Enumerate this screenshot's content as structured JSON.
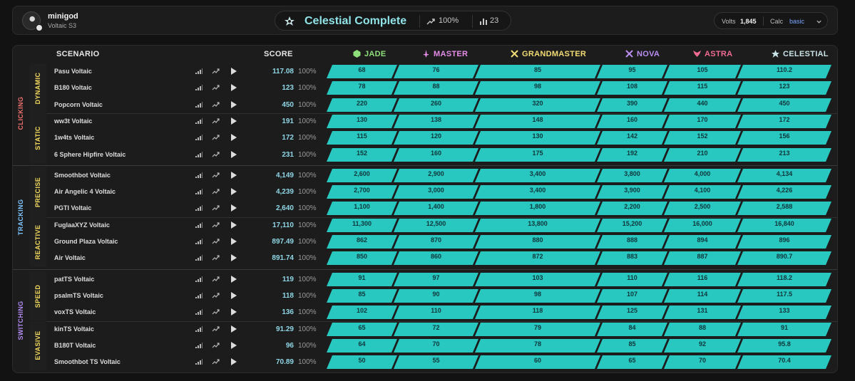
{
  "profile": {
    "name": "minigod",
    "subtitle": "Voltaic S3"
  },
  "summary": {
    "rank": "Celestial Complete",
    "percent": "100%",
    "count": "23"
  },
  "settings": {
    "volts_label": "Volts",
    "volts_value": "1,845",
    "calc_label": "Calc",
    "calc_value": "basic"
  },
  "columns": {
    "scenario": "SCENARIO",
    "score": "SCORE",
    "ranks": [
      {
        "label": "JADE",
        "color": "#8ee07a",
        "icon": "jade-gem-icon"
      },
      {
        "label": "MASTER",
        "color": "#e58ce8",
        "icon": "master-sword-icon"
      },
      {
        "label": "GRANDMASTER",
        "color": "#f3dc74",
        "icon": "grandmaster-crossed-swords-icon"
      },
      {
        "label": "NOVA",
        "color": "#b98df2",
        "icon": "nova-crossed-swords-icon"
      },
      {
        "label": "ASTRA",
        "color": "#f06b91",
        "icon": "astra-wings-icon"
      },
      {
        "label": "CELESTIAL",
        "color": "#c9e3e6",
        "icon": "celestial-emblem-icon"
      }
    ]
  },
  "colors": {
    "bar_fill": "#28c7c0",
    "clicking": "#ef6f6f",
    "tracking": "#7ec4ff",
    "switching": "#b18af0",
    "subcategory": "#f5dc5e"
  },
  "categories": [
    {
      "name": "CLICKING",
      "groups": [
        {
          "name": "DYNAMIC",
          "rows": [
            {
              "scenario": "Pasu Voltaic",
              "score": "117.08",
              "percent": "100%",
              "thresholds": [
                "68",
                "76",
                "85",
                "95",
                "105",
                "110.2"
              ]
            },
            {
              "scenario": "B180 Voltaic",
              "score": "123",
              "percent": "100%",
              "thresholds": [
                "78",
                "88",
                "98",
                "108",
                "115",
                "123"
              ]
            },
            {
              "scenario": "Popcorn Voltaic",
              "score": "450",
              "percent": "100%",
              "thresholds": [
                "220",
                "260",
                "320",
                "390",
                "440",
                "450"
              ]
            }
          ]
        },
        {
          "name": "STATIC",
          "rows": [
            {
              "scenario": "ww3t Voltaic",
              "score": "191",
              "percent": "100%",
              "thresholds": [
                "130",
                "138",
                "148",
                "160",
                "170",
                "172"
              ]
            },
            {
              "scenario": "1w4ts Voltaic",
              "score": "172",
              "percent": "100%",
              "thresholds": [
                "115",
                "120",
                "130",
                "142",
                "152",
                "156"
              ]
            },
            {
              "scenario": "6 Sphere Hipfire Voltaic",
              "score": "231",
              "percent": "100%",
              "thresholds": [
                "152",
                "160",
                "175",
                "192",
                "210",
                "213"
              ]
            }
          ]
        }
      ]
    },
    {
      "name": "TRACKING",
      "groups": [
        {
          "name": "PRECISE",
          "rows": [
            {
              "scenario": "Smoothbot Voltaic",
              "score": "4,149",
              "percent": "100%",
              "thresholds": [
                "2,600",
                "2,900",
                "3,400",
                "3,800",
                "4,000",
                "4,134"
              ]
            },
            {
              "scenario": "Air Angelic 4 Voltaic",
              "score": "4,239",
              "percent": "100%",
              "thresholds": [
                "2,700",
                "3,000",
                "3,400",
                "3,900",
                "4,100",
                "4,226"
              ]
            },
            {
              "scenario": "PGTI Voltaic",
              "score": "2,640",
              "percent": "100%",
              "thresholds": [
                "1,100",
                "1,400",
                "1,800",
                "2,200",
                "2,500",
                "2,588"
              ]
            }
          ]
        },
        {
          "name": "REACTIVE",
          "rows": [
            {
              "scenario": "FuglaaXYZ Voltaic",
              "score": "17,110",
              "percent": "100%",
              "thresholds": [
                "11,300",
                "12,500",
                "13,800",
                "15,200",
                "16,000",
                "16,840"
              ]
            },
            {
              "scenario": "Ground Plaza Voltaic",
              "score": "897.49",
              "percent": "100%",
              "thresholds": [
                "862",
                "870",
                "880",
                "888",
                "894",
                "896"
              ]
            },
            {
              "scenario": "Air Voltaic",
              "score": "891.74",
              "percent": "100%",
              "thresholds": [
                "850",
                "860",
                "872",
                "883",
                "887",
                "890.7"
              ]
            }
          ]
        }
      ]
    },
    {
      "name": "SWITCHING",
      "groups": [
        {
          "name": "SPEED",
          "rows": [
            {
              "scenario": "patTS Voltaic",
              "score": "119",
              "percent": "100%",
              "thresholds": [
                "91",
                "97",
                "103",
                "110",
                "116",
                "118.2"
              ]
            },
            {
              "scenario": "psalmTS Voltaic",
              "score": "118",
              "percent": "100%",
              "thresholds": [
                "85",
                "90",
                "98",
                "107",
                "114",
                "117.5"
              ]
            },
            {
              "scenario": "voxTS Voltaic",
              "score": "136",
              "percent": "100%",
              "thresholds": [
                "102",
                "110",
                "118",
                "125",
                "131",
                "133"
              ]
            }
          ]
        },
        {
          "name": "EVASIVE",
          "rows": [
            {
              "scenario": "kinTS Voltaic",
              "score": "91.29",
              "percent": "100%",
              "thresholds": [
                "65",
                "72",
                "79",
                "84",
                "88",
                "91"
              ]
            },
            {
              "scenario": "B180T Voltaic",
              "score": "96",
              "percent": "100%",
              "thresholds": [
                "64",
                "70",
                "78",
                "85",
                "92",
                "95.8"
              ]
            },
            {
              "scenario": "Smoothbot TS Voltaic",
              "score": "70.89",
              "percent": "100%",
              "thresholds": [
                "50",
                "55",
                "60",
                "65",
                "70",
                "70.4"
              ]
            }
          ]
        }
      ]
    }
  ]
}
